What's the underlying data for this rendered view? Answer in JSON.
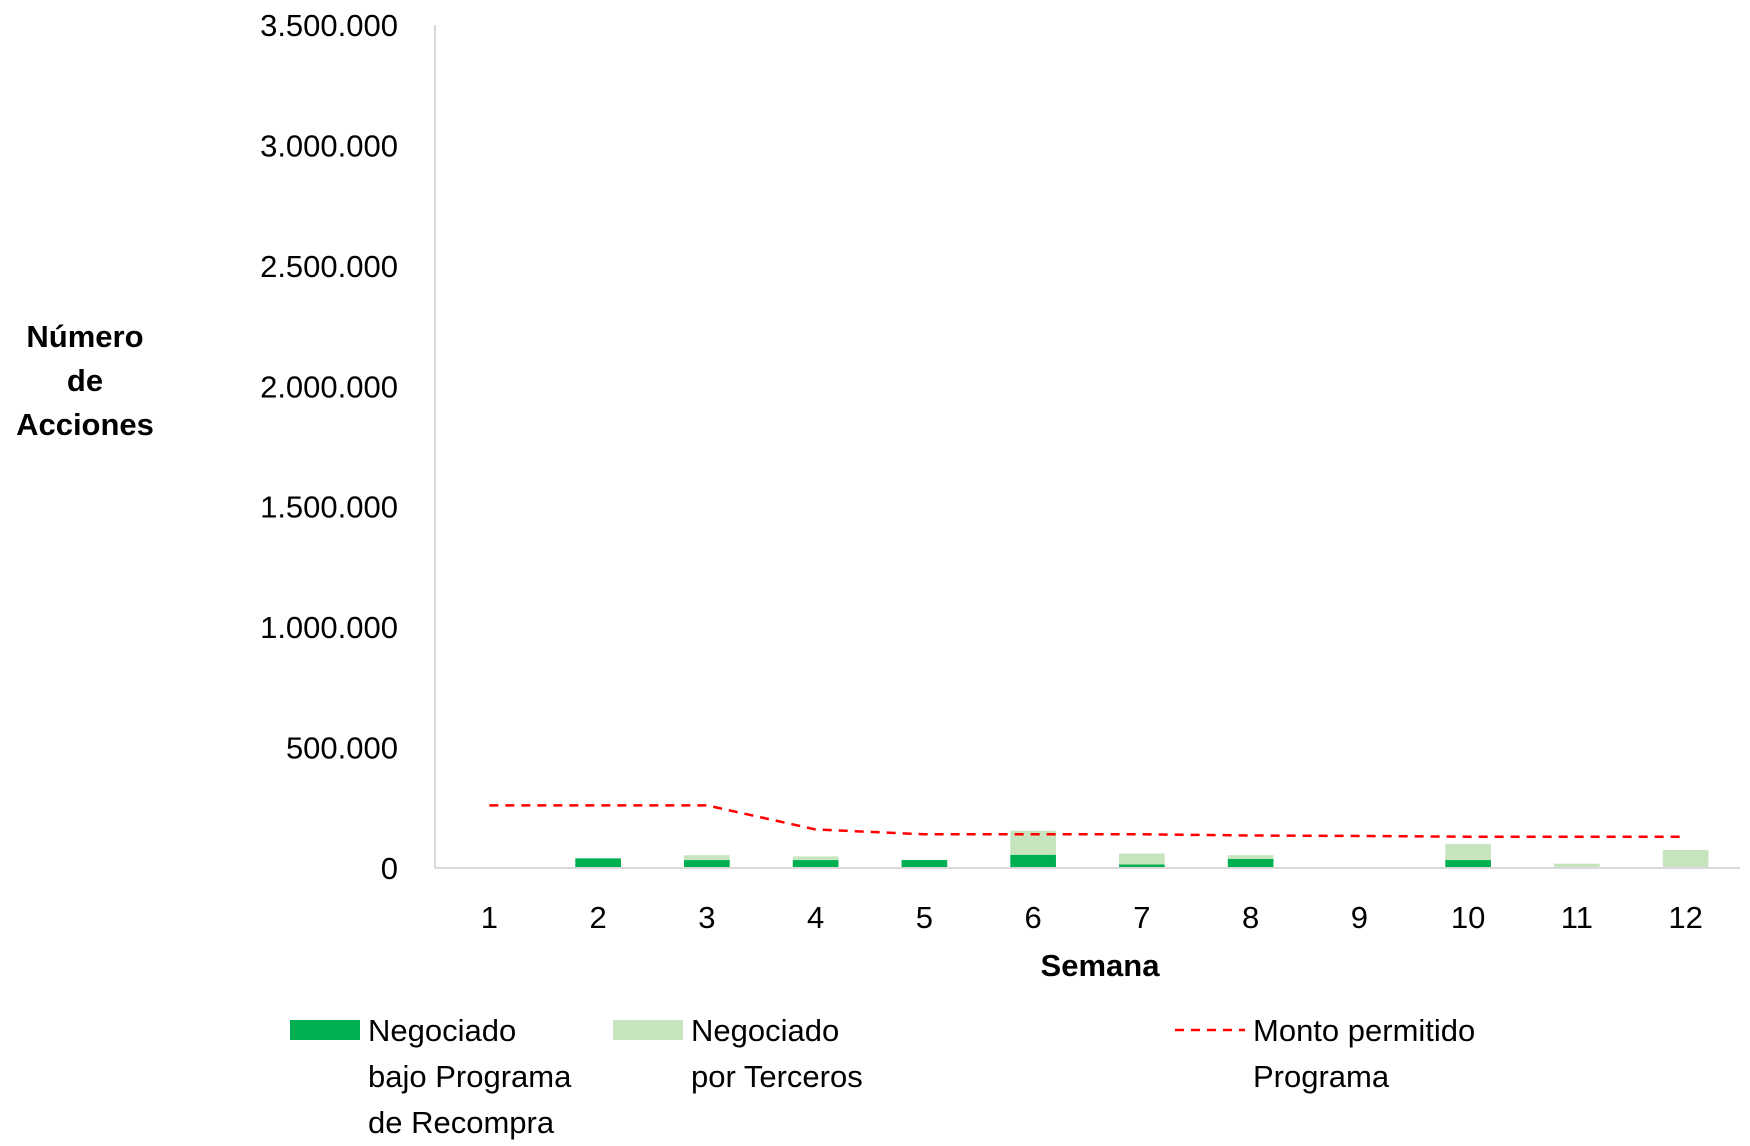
{
  "chart_data": {
    "type": "bar",
    "stacked": true,
    "xlabel": "Semana",
    "ylabel_lines": [
      "Número",
      "de",
      "Acciones"
    ],
    "categories": [
      "1",
      "2",
      "3",
      "4",
      "5",
      "6",
      "7",
      "8",
      "9",
      "10",
      "11",
      "12"
    ],
    "ylim": [
      0,
      3500000
    ],
    "yticks": [
      0,
      500000,
      1000000,
      1500000,
      2000000,
      2500000,
      3000000,
      3500000
    ],
    "ytick_labels": [
      "0",
      "500.000",
      "1.000.000",
      "1.500.000",
      "2.000.000",
      "2.500.000",
      "3.000.000",
      "3.500.000"
    ],
    "grid": false,
    "legend_position": "bottom",
    "series": [
      {
        "name_lines": [
          "Negociado",
          "bajo Programa",
          "de Recompra"
        ],
        "type": "bar",
        "color": "#00b050",
        "values": [
          0,
          40000,
          33000,
          33000,
          33000,
          55000,
          15000,
          38000,
          0,
          33000,
          0,
          0
        ]
      },
      {
        "name_lines": [
          "Negociado",
          "por Terceros"
        ],
        "type": "bar",
        "color": "#c6e5be",
        "values": [
          0,
          0,
          20000,
          15000,
          0,
          100000,
          45000,
          15000,
          0,
          67000,
          18000,
          75000
        ]
      },
      {
        "name_lines": [
          "Monto permitido",
          "Programa"
        ],
        "type": "line",
        "style": "dashed",
        "color": "#ff0000",
        "values": [
          260000,
          260000,
          260000,
          160000,
          140000,
          140000,
          140000,
          135000,
          133000,
          130000,
          130000,
          130000
        ]
      }
    ]
  }
}
